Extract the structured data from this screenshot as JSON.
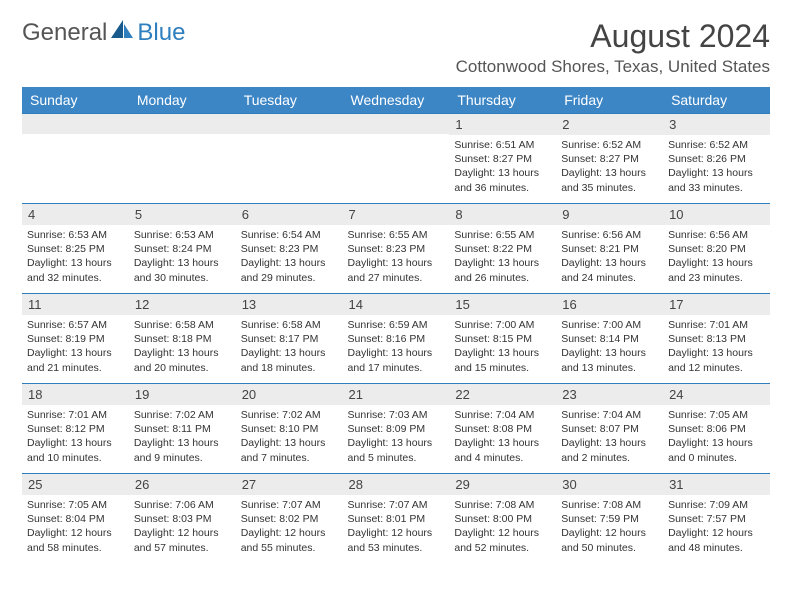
{
  "logo": {
    "text1": "General",
    "text2": "Blue"
  },
  "title": "August 2024",
  "location": "Cottonwood Shores, Texas, United States",
  "colors": {
    "header_bg": "#3c86c6",
    "header_fg": "#ffffff",
    "daynum_bg": "#ececec",
    "border": "#2f7fbf",
    "logo_blue": "#2f7fbf"
  },
  "weekdays": [
    "Sunday",
    "Monday",
    "Tuesday",
    "Wednesday",
    "Thursday",
    "Friday",
    "Saturday"
  ],
  "weeks": [
    [
      {
        "n": "",
        "sr": "",
        "ss": "",
        "dl": ""
      },
      {
        "n": "",
        "sr": "",
        "ss": "",
        "dl": ""
      },
      {
        "n": "",
        "sr": "",
        "ss": "",
        "dl": ""
      },
      {
        "n": "",
        "sr": "",
        "ss": "",
        "dl": ""
      },
      {
        "n": "1",
        "sr": "Sunrise: 6:51 AM",
        "ss": "Sunset: 8:27 PM",
        "dl": "Daylight: 13 hours and 36 minutes."
      },
      {
        "n": "2",
        "sr": "Sunrise: 6:52 AM",
        "ss": "Sunset: 8:27 PM",
        "dl": "Daylight: 13 hours and 35 minutes."
      },
      {
        "n": "3",
        "sr": "Sunrise: 6:52 AM",
        "ss": "Sunset: 8:26 PM",
        "dl": "Daylight: 13 hours and 33 minutes."
      }
    ],
    [
      {
        "n": "4",
        "sr": "Sunrise: 6:53 AM",
        "ss": "Sunset: 8:25 PM",
        "dl": "Daylight: 13 hours and 32 minutes."
      },
      {
        "n": "5",
        "sr": "Sunrise: 6:53 AM",
        "ss": "Sunset: 8:24 PM",
        "dl": "Daylight: 13 hours and 30 minutes."
      },
      {
        "n": "6",
        "sr": "Sunrise: 6:54 AM",
        "ss": "Sunset: 8:23 PM",
        "dl": "Daylight: 13 hours and 29 minutes."
      },
      {
        "n": "7",
        "sr": "Sunrise: 6:55 AM",
        "ss": "Sunset: 8:23 PM",
        "dl": "Daylight: 13 hours and 27 minutes."
      },
      {
        "n": "8",
        "sr": "Sunrise: 6:55 AM",
        "ss": "Sunset: 8:22 PM",
        "dl": "Daylight: 13 hours and 26 minutes."
      },
      {
        "n": "9",
        "sr": "Sunrise: 6:56 AM",
        "ss": "Sunset: 8:21 PM",
        "dl": "Daylight: 13 hours and 24 minutes."
      },
      {
        "n": "10",
        "sr": "Sunrise: 6:56 AM",
        "ss": "Sunset: 8:20 PM",
        "dl": "Daylight: 13 hours and 23 minutes."
      }
    ],
    [
      {
        "n": "11",
        "sr": "Sunrise: 6:57 AM",
        "ss": "Sunset: 8:19 PM",
        "dl": "Daylight: 13 hours and 21 minutes."
      },
      {
        "n": "12",
        "sr": "Sunrise: 6:58 AM",
        "ss": "Sunset: 8:18 PM",
        "dl": "Daylight: 13 hours and 20 minutes."
      },
      {
        "n": "13",
        "sr": "Sunrise: 6:58 AM",
        "ss": "Sunset: 8:17 PM",
        "dl": "Daylight: 13 hours and 18 minutes."
      },
      {
        "n": "14",
        "sr": "Sunrise: 6:59 AM",
        "ss": "Sunset: 8:16 PM",
        "dl": "Daylight: 13 hours and 17 minutes."
      },
      {
        "n": "15",
        "sr": "Sunrise: 7:00 AM",
        "ss": "Sunset: 8:15 PM",
        "dl": "Daylight: 13 hours and 15 minutes."
      },
      {
        "n": "16",
        "sr": "Sunrise: 7:00 AM",
        "ss": "Sunset: 8:14 PM",
        "dl": "Daylight: 13 hours and 13 minutes."
      },
      {
        "n": "17",
        "sr": "Sunrise: 7:01 AM",
        "ss": "Sunset: 8:13 PM",
        "dl": "Daylight: 13 hours and 12 minutes."
      }
    ],
    [
      {
        "n": "18",
        "sr": "Sunrise: 7:01 AM",
        "ss": "Sunset: 8:12 PM",
        "dl": "Daylight: 13 hours and 10 minutes."
      },
      {
        "n": "19",
        "sr": "Sunrise: 7:02 AM",
        "ss": "Sunset: 8:11 PM",
        "dl": "Daylight: 13 hours and 9 minutes."
      },
      {
        "n": "20",
        "sr": "Sunrise: 7:02 AM",
        "ss": "Sunset: 8:10 PM",
        "dl": "Daylight: 13 hours and 7 minutes."
      },
      {
        "n": "21",
        "sr": "Sunrise: 7:03 AM",
        "ss": "Sunset: 8:09 PM",
        "dl": "Daylight: 13 hours and 5 minutes."
      },
      {
        "n": "22",
        "sr": "Sunrise: 7:04 AM",
        "ss": "Sunset: 8:08 PM",
        "dl": "Daylight: 13 hours and 4 minutes."
      },
      {
        "n": "23",
        "sr": "Sunrise: 7:04 AM",
        "ss": "Sunset: 8:07 PM",
        "dl": "Daylight: 13 hours and 2 minutes."
      },
      {
        "n": "24",
        "sr": "Sunrise: 7:05 AM",
        "ss": "Sunset: 8:06 PM",
        "dl": "Daylight: 13 hours and 0 minutes."
      }
    ],
    [
      {
        "n": "25",
        "sr": "Sunrise: 7:05 AM",
        "ss": "Sunset: 8:04 PM",
        "dl": "Daylight: 12 hours and 58 minutes."
      },
      {
        "n": "26",
        "sr": "Sunrise: 7:06 AM",
        "ss": "Sunset: 8:03 PM",
        "dl": "Daylight: 12 hours and 57 minutes."
      },
      {
        "n": "27",
        "sr": "Sunrise: 7:07 AM",
        "ss": "Sunset: 8:02 PM",
        "dl": "Daylight: 12 hours and 55 minutes."
      },
      {
        "n": "28",
        "sr": "Sunrise: 7:07 AM",
        "ss": "Sunset: 8:01 PM",
        "dl": "Daylight: 12 hours and 53 minutes."
      },
      {
        "n": "29",
        "sr": "Sunrise: 7:08 AM",
        "ss": "Sunset: 8:00 PM",
        "dl": "Daylight: 12 hours and 52 minutes."
      },
      {
        "n": "30",
        "sr": "Sunrise: 7:08 AM",
        "ss": "Sunset: 7:59 PM",
        "dl": "Daylight: 12 hours and 50 minutes."
      },
      {
        "n": "31",
        "sr": "Sunrise: 7:09 AM",
        "ss": "Sunset: 7:57 PM",
        "dl": "Daylight: 12 hours and 48 minutes."
      }
    ]
  ]
}
